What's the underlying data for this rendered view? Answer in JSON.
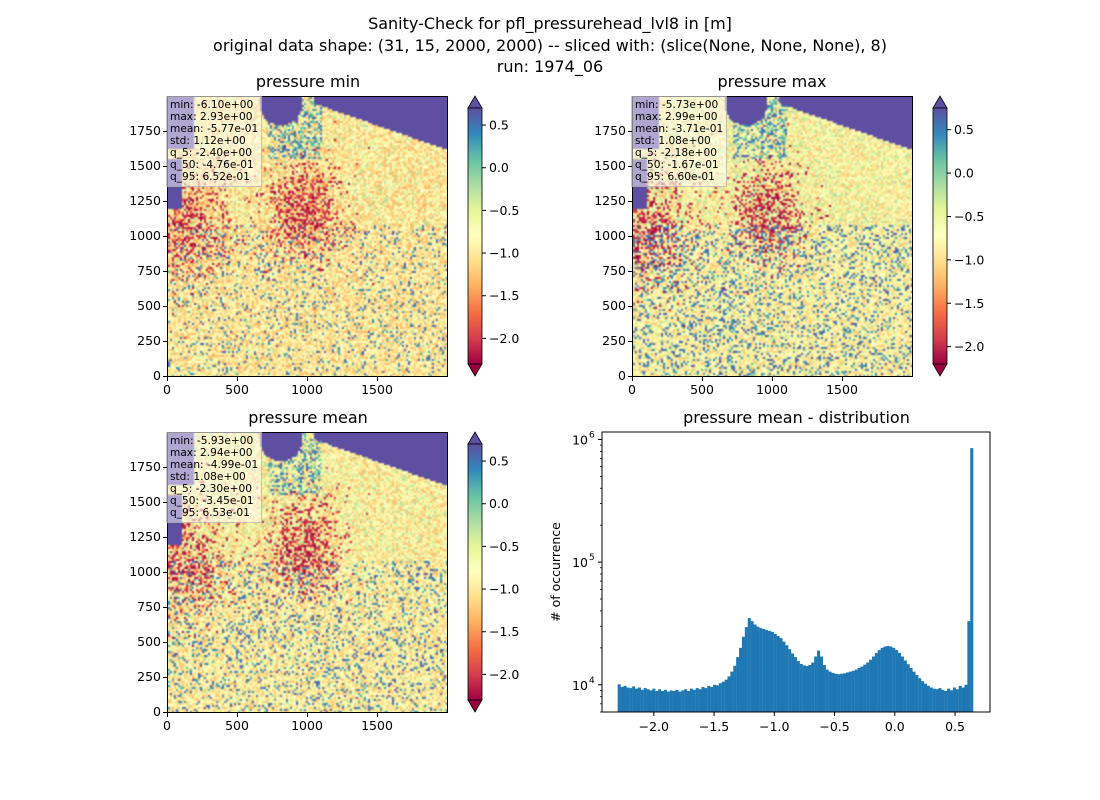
{
  "figure": {
    "title_line1": "Sanity-Check for pfl_pressurehead_lvl8 in [m]",
    "title_line2": "original data shape: (31, 15, 2000, 2000) -- sliced with: (slice(None, None, None), 8)",
    "title_line3": "run: 1974_06"
  },
  "colors": {
    "colormap": "Spectral",
    "colormap_stops": [
      "#9e0142",
      "#d53e4f",
      "#f46d43",
      "#fdae61",
      "#fee08b",
      "#ffffbf",
      "#e6f598",
      "#abdda4",
      "#66c2a5",
      "#3288bd",
      "#5e4fa2"
    ],
    "histogram_bar": "#1f77b4",
    "background_ocean": "#5e4fa2"
  },
  "chart_data": [
    {
      "type": "heatmap",
      "title": "pressure min",
      "xlabel": "",
      "ylabel": "",
      "xlim": [
        0,
        2000
      ],
      "ylim": [
        0,
        2000
      ],
      "x_ticks": [
        "0",
        "500",
        "1000",
        "1500"
      ],
      "y_ticks": [
        "0",
        "250",
        "500",
        "750",
        "1000",
        "1250",
        "1500",
        "1750"
      ],
      "colorbar": {
        "vmin": -2.3,
        "vmax": 0.7,
        "ticks": [
          "0.5",
          "0.0",
          "−0.5",
          "−1.0",
          "−1.5",
          "−2.0"
        ],
        "tick_values": [
          0.5,
          0.0,
          -0.5,
          -1.0,
          -1.5,
          -2.0
        ],
        "extend": "both"
      },
      "stats": [
        "min: -6.10e+00",
        "max: 2.93e+00",
        "mean: -5.77e-01",
        "std: 1.12e+00",
        "q_5: -2.40e+00",
        "q_50: -4.76e-01",
        "q_95: 6.52e-01"
      ]
    },
    {
      "type": "heatmap",
      "title": "pressure max",
      "xlabel": "",
      "ylabel": "",
      "xlim": [
        0,
        2000
      ],
      "ylim": [
        0,
        2000
      ],
      "x_ticks": [
        "0",
        "500",
        "1000",
        "1500"
      ],
      "y_ticks": [
        "0",
        "250",
        "500",
        "750",
        "1000",
        "1250",
        "1500",
        "1750"
      ],
      "colorbar": {
        "vmin": -2.2,
        "vmax": 0.75,
        "ticks": [
          "0.5",
          "0.0",
          "−0.5",
          "−1.0",
          "−1.5",
          "−2.0"
        ],
        "tick_values": [
          0.5,
          0.0,
          -0.5,
          -1.0,
          -1.5,
          -2.0
        ],
        "extend": "both"
      },
      "stats": [
        "min: -5.73e+00",
        "max: 2.99e+00",
        "mean: -3.71e-01",
        "std: 1.08e+00",
        "q_5: -2.18e+00",
        "q_50: -1.67e-01",
        "q_95: 6.60e-01"
      ]
    },
    {
      "type": "heatmap",
      "title": "pressure mean",
      "xlabel": "",
      "ylabel": "",
      "xlim": [
        0,
        2000
      ],
      "ylim": [
        0,
        2000
      ],
      "x_ticks": [
        "0",
        "500",
        "1000",
        "1500"
      ],
      "y_ticks": [
        "0",
        "250",
        "500",
        "750",
        "1000",
        "1250",
        "1500",
        "1750"
      ],
      "colorbar": {
        "vmin": -2.3,
        "vmax": 0.7,
        "ticks": [
          "0.5",
          "0.0",
          "−0.5",
          "−1.0",
          "−1.5",
          "−2.0"
        ],
        "tick_values": [
          0.5,
          0.0,
          -0.5,
          -1.0,
          -1.5,
          -2.0
        ],
        "extend": "both"
      },
      "stats": [
        "min: -5.93e+00",
        "max: 2.94e+00",
        "mean: -4.99e-01",
        "std: 1.08e+00",
        "q_5: -2.30e+00",
        "q_50: -3.45e-01",
        "q_95: 6.53e-01"
      ]
    },
    {
      "type": "bar",
      "title": "pressure mean - distribution",
      "xlabel": "",
      "ylabel": "# of occurrence",
      "y_scale": "log",
      "xlim": [
        -2.43,
        0.79
      ],
      "ylim": [
        6000,
        1150000
      ],
      "x_ticks": [
        "−2.0",
        "−1.5",
        "−1.0",
        "−0.5",
        "0.0",
        "0.5"
      ],
      "x_tick_values": [
        -2.0,
        -1.5,
        -1.0,
        -0.5,
        0.0,
        0.5
      ],
      "y_ticks": [
        "10",
        "10",
        "10"
      ],
      "y_tick_exponents": [
        "4",
        "5",
        "6"
      ],
      "y_tick_values": [
        10000,
        100000,
        1000000
      ],
      "bin_range": [
        -2.3,
        0.65
      ],
      "values": [
        10100,
        9600,
        9800,
        9500,
        9400,
        9700,
        9300,
        9500,
        9100,
        9400,
        9200,
        9000,
        9300,
        8900,
        9200,
        8900,
        9100,
        8800,
        9000,
        8900,
        9100,
        8800,
        9000,
        9200,
        8900,
        9300,
        9100,
        9400,
        9200,
        9600,
        9400,
        9800,
        9600,
        10000,
        9900,
        10300,
        10600,
        11000,
        11700,
        12800,
        14300,
        16800,
        20000,
        24600,
        29500,
        35000,
        33000,
        31000,
        29800,
        29000,
        28500,
        28000,
        27500,
        27000,
        26000,
        25000,
        24000,
        22500,
        21000,
        19500,
        18000,
        16800,
        15600,
        14800,
        14400,
        14200,
        14500,
        15200,
        17000,
        19000,
        17000,
        14500,
        13300,
        12800,
        12500,
        12300,
        12200,
        12300,
        12400,
        12600,
        12800,
        13000,
        13300,
        13700,
        14100,
        14600,
        15200,
        16000,
        17000,
        18200,
        19200,
        20000,
        20500,
        20700,
        20500,
        20000,
        19200,
        18200,
        17000,
        15800,
        14700,
        13700,
        12800,
        12000,
        11300,
        10700,
        10200,
        9800,
        9500,
        9300,
        9200,
        9400,
        9100,
        8900,
        9300,
        9000,
        9500,
        9200,
        9800,
        9500,
        10000,
        33000,
        850000
      ]
    }
  ]
}
